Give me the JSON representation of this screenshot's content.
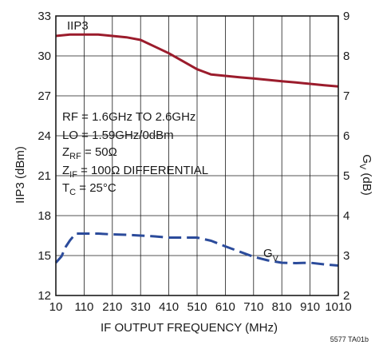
{
  "chart_data": {
    "type": "line",
    "xlabel": "IF OUTPUT FREQUENCY (MHz)",
    "ylabel_left": "IIP3 (dBm)",
    "ylabel_right_main": "G",
    "ylabel_right_sub": "V",
    "ylabel_right_unit": " (dB)",
    "xlim": [
      10,
      1010
    ],
    "ylim_left": [
      12,
      33
    ],
    "ylim_right": [
      2,
      9
    ],
    "x_ticks": [
      10,
      110,
      210,
      310,
      410,
      510,
      610,
      710,
      810,
      910,
      1010
    ],
    "y_ticks_left": [
      12,
      15,
      18,
      21,
      24,
      27,
      30,
      33
    ],
    "y_ticks_right": [
      2,
      3,
      4,
      5,
      6,
      7,
      8,
      9
    ],
    "grid": true,
    "series": [
      {
        "name": "IIP3",
        "axis": "left",
        "color": "#9b1c2c",
        "style": "solid",
        "x": [
          10,
          60,
          110,
          160,
          210,
          260,
          310,
          360,
          410,
          460,
          510,
          560,
          610,
          660,
          710,
          760,
          810,
          860,
          910,
          960,
          1010
        ],
        "y": [
          31.5,
          31.6,
          31.6,
          31.6,
          31.5,
          31.4,
          31.2,
          30.7,
          30.2,
          29.6,
          29.0,
          28.6,
          28.5,
          28.4,
          28.3,
          28.2,
          28.1,
          28.0,
          27.9,
          27.8,
          27.7
        ]
      },
      {
        "name_main": "G",
        "name_sub": "V",
        "axis": "right",
        "color": "#2b4b9b",
        "style": "dashed",
        "x": [
          10,
          30,
          45,
          60,
          80,
          110,
          160,
          210,
          260,
          310,
          360,
          410,
          460,
          510,
          560,
          610,
          660,
          710,
          760,
          810,
          860,
          910,
          960,
          1010
        ],
        "y": [
          2.82,
          2.98,
          3.22,
          3.38,
          3.55,
          3.55,
          3.55,
          3.53,
          3.52,
          3.5,
          3.48,
          3.45,
          3.45,
          3.45,
          3.37,
          3.23,
          3.1,
          2.97,
          2.88,
          2.82,
          2.81,
          2.82,
          2.78,
          2.75
        ]
      }
    ],
    "annotations": {
      "rf": "RF = 1.6GHz TO 2.6GHz",
      "lo": "LO = 1.59GHz/0dBm",
      "zrf_main": "Z",
      "zrf_sub": "RF",
      "zrf_value": " = 50Ω",
      "zif_main": "Z",
      "zif_sub": "IF",
      "zif_value": " = 100Ω DIFFERENTIAL",
      "tc_main": "T",
      "tc_sub": "C",
      "tc_value": " = 25°C"
    },
    "figure_id": "5577 TA01b"
  }
}
